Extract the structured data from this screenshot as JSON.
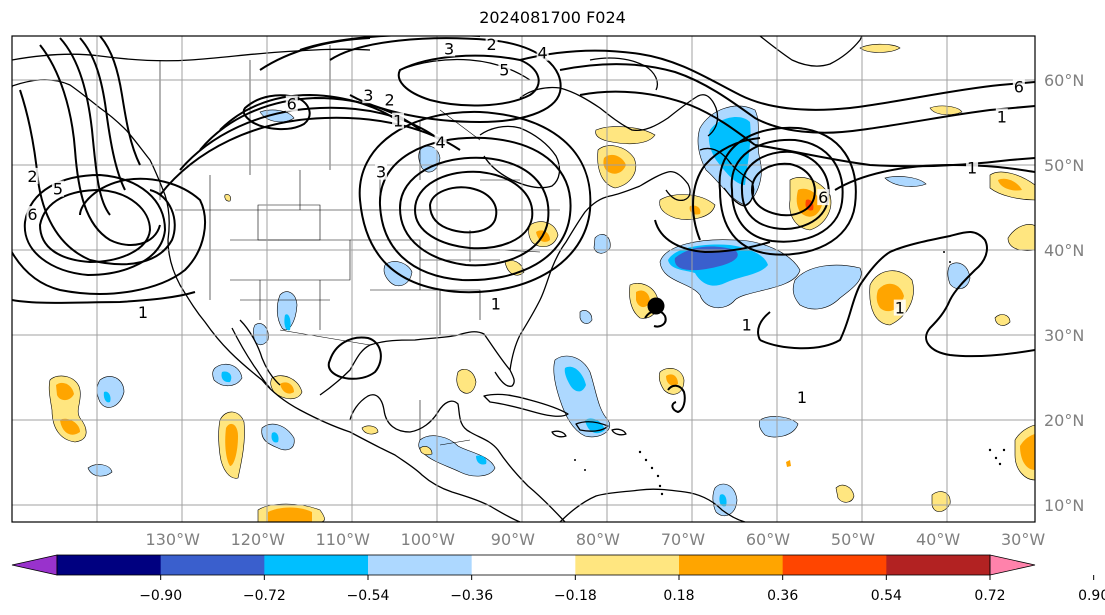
{
  "title": "2024081700 F024",
  "lon_labels": [
    "130°W",
    "120°W",
    "110°W",
    "100°W",
    "90°W",
    "80°W",
    "70°W",
    "60°W",
    "50°W",
    "40°W",
    "30°W"
  ],
  "lat_labels": [
    "10°N",
    "20°N",
    "30°N",
    "40°N",
    "50°N",
    "60°N"
  ],
  "colorbar": {
    "tick_labels": [
      "−0.90",
      "−0.72",
      "−0.54",
      "−0.36",
      "−0.18",
      "0.18",
      "0.36",
      "0.54",
      "0.72",
      "0.90"
    ],
    "colors": [
      "#9932cc",
      "#000080",
      "#3a5fcd",
      "#00bfff",
      "#add8ff",
      "#ffffff",
      "#ffe680",
      "#ffa500",
      "#ff4500",
      "#b22222",
      "#ff82ab"
    ]
  },
  "contour_labels": [
    {
      "text": "1",
      "lon": -133.5,
      "lat": 32.5
    },
    {
      "text": "2",
      "lon": -146.5,
      "lat": 48.5
    },
    {
      "text": "5",
      "lon": -143.5,
      "lat": 47.0
    },
    {
      "text": "6",
      "lon": -146.5,
      "lat": 44.0
    },
    {
      "text": "6",
      "lon": -116.0,
      "lat": 57.0
    },
    {
      "text": "3",
      "lon": -107.0,
      "lat": 58.0
    },
    {
      "text": "2",
      "lon": -104.5,
      "lat": 57.5
    },
    {
      "text": "1",
      "lon": -103.5,
      "lat": 55.0
    },
    {
      "text": "4",
      "lon": -98.5,
      "lat": 52.5
    },
    {
      "text": "3",
      "lon": -105.5,
      "lat": 49.0
    },
    {
      "text": "3",
      "lon": -97.5,
      "lat": 63.5
    },
    {
      "text": "2",
      "lon": -92.5,
      "lat": 64.0
    },
    {
      "text": "4",
      "lon": -86.5,
      "lat": 63.0
    },
    {
      "text": "5",
      "lon": -91.0,
      "lat": 61.0
    },
    {
      "text": "1",
      "lon": -92.0,
      "lat": 33.5
    },
    {
      "text": "1",
      "lon": -44.5,
      "lat": 33.0
    },
    {
      "text": "1",
      "lon": -36.0,
      "lat": 49.5
    },
    {
      "text": "1",
      "lon": -32.5,
      "lat": 55.5
    },
    {
      "text": "6",
      "lon": -30.5,
      "lat": 59.0
    },
    {
      "text": "1",
      "lon": -56.0,
      "lat": 22.5
    },
    {
      "text": "6",
      "lon": -53.5,
      "lat": 46.0
    },
    {
      "text": "1",
      "lon": -62.5,
      "lat": 31.0
    }
  ]
}
